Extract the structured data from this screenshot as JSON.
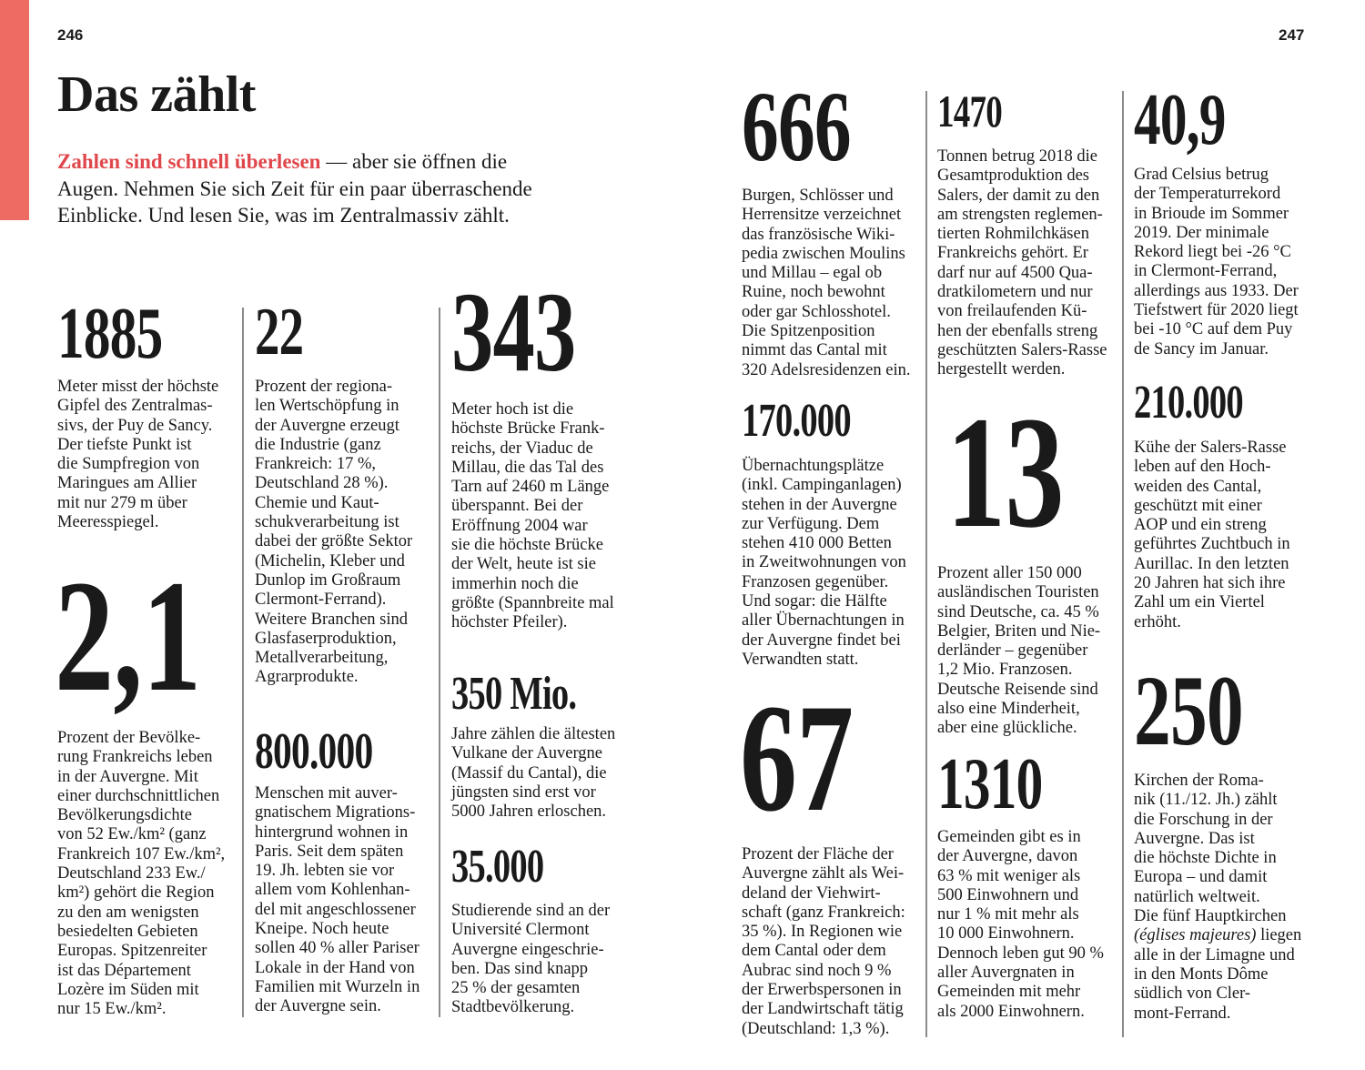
{
  "page_left": "246",
  "page_right": "247",
  "title": "Das zählt",
  "intro": {
    "highlight": "Zahlen sind schnell überlesen",
    "rest": " — aber sie öffnen die\nAugen. Nehmen Sie sich Zeit für ein paar überraschende\nEinblicke. Und lesen Sie, was im Zentralmassiv zählt."
  },
  "colors": {
    "accent": "#ee6b63",
    "highlight_text": "#e0474c"
  },
  "facts": {
    "f1885": {
      "number": "1885",
      "text": "Meter misst der höchste\nGipfel des Zentralmas-\nsivs, der Puy de Sancy.\nDer tiefste Punkt ist\ndie Sumpfregion von\nMaringues am Allier\nmit nur 279 m über\nMeeresspiegel."
    },
    "f21": {
      "number": "2,1",
      "text": "Prozent der Bevölke-\nrung Frankreichs leben\nin der Auvergne. Mit\neiner durchschnittlichen\nBevölkerungsdichte\nvon 52 Ew./km² (ganz\nFrankreich 107 Ew./km²,\nDeutschland 233 Ew./\nkm²) gehört die Region\nzu den am wenigsten\nbesiedelten Gebieten\nEuropas. Spitzenreiter\nist das Département\nLozère im Süden mit\nnur 15 Ew./km²."
    },
    "f22": {
      "number": "22",
      "text": "Prozent der regiona-\nlen Wertschöpfung in\nder Auvergne erzeugt\ndie Industrie (ganz\nFrankreich: 17 %,\nDeutschland 28 %).\nChemie und Kaut-\nschukverarbeitung ist\ndabei der größte Sektor\n(Michelin, Kleber und\nDunlop im Großraum\nClermont-Ferrand).\nWeitere Branchen sind\nGlasfaserproduktion,\nMetallverarbeitung,\nAgrarprodukte."
    },
    "f800000": {
      "number": "800.000",
      "text": "Menschen mit auver-\ngnatischem Migrations-\nhintergrund wohnen in\nParis. Seit dem späten\n19. Jh. lebten sie vor\nallem vom Kohlenhan-\ndel mit angeschlossener\nKneipe. Noch heute\nsollen 40 % aller Pariser\nLokale in der Hand von\nFamilien mit Wurzeln in\nder Auvergne sein."
    },
    "f343": {
      "number": "343",
      "text": "Meter hoch ist die\nhöchste Brücke Frank-\nreichs, der Viaduc de\nMillau, die das Tal des\nTarn auf 2460 m Länge\nüberspannt. Bei der\nEröffnung 2004 war\nsie die höchste Brücke\nder Welt, heute ist sie\nimmerhin noch die\ngrößte (Spannbreite mal\nhöchster Pfeiler)."
    },
    "f350": {
      "number": "350 Mio.",
      "text": "Jahre zählen die ältesten\nVulkane der Auvergne\n(Massif du Cantal), die\njüngsten sind erst vor\n5000 Jahren erloschen."
    },
    "f35000": {
      "number": "35.000",
      "text": "Studierende sind an der\nUniversité Clermont\nAuvergne eingeschrie-\nben. Das sind knapp\n25 % der gesamten\nStadtbevölkerung."
    },
    "f666": {
      "number": "666",
      "text": "Burgen, Schlösser und\nHerrensitze verzeichnet\ndas französische Wiki-\npedia zwischen Moulins\nund Millau – egal ob\nRuine, noch bewohnt\noder gar Schlosshotel.\nDie Spitzenposition\nnimmt das Cantal mit\n320 Adelsresidenzen ein."
    },
    "f170000": {
      "number": "170.000",
      "text": "Übernachtungsplätze\n(inkl. Campinganlagen)\nstehen in der Auvergne\nzur Verfügung. Dem\nstehen 410 000 Betten\nin Zweitwohnungen von\nFranzosen gegenüber.\nUnd sogar: die Hälfte\naller Übernachtungen in\nder Auvergne findet bei\nVerwandten statt."
    },
    "f67": {
      "number": "67",
      "text": "Prozent der Fläche der\nAuvergne zählt als Wei-\ndeland der Viehwirt-\nschaft (ganz Frankreich:\n35 %). In Regionen wie\ndem Cantal oder dem\nAubrac sind noch 9 %\nder Erwerbspersonen in\nder Landwirtschaft tätig\n(Deutschland: 1,3 %)."
    },
    "f1470": {
      "number": "1470",
      "text": "Tonnen betrug 2018 die\nGesamtproduktion des\nSalers, der damit zu den\nam strengsten reglemen-\ntierten Rohmilchkäsen\nFrankreichs gehört. Er\ndarf nur auf 4500 Qua-\ndratkilometern und nur\nvon freilaufenden Kü-\nhen der ebenfalls streng\ngeschützten Salers-Rasse\nhergestellt werden."
    },
    "f13": {
      "number": "13",
      "text": "Prozent aller 150 000\nausländischen Touristen\nsind Deutsche, ca. 45 %\nBelgier, Briten und Nie-\nderländer – gegenüber\n1,2 Mio. Franzosen.\nDeutsche Reisende sind\nalso eine Minderheit,\naber eine glückliche."
    },
    "f1310": {
      "number": "1310",
      "text": "Gemeinden gibt es in\nder Auvergne, davon\n63 % mit weniger als\n500 Einwohnern und\nnur 1 % mit mehr als\n10 000 Einwohnern.\nDennoch leben gut 90 %\naller Auvergnaten in\nGemeinden mit mehr\nals 2000 Einwohnern."
    },
    "f409": {
      "number": "40,9",
      "text": "Grad Celsius betrug\nder Temperaturrekord\nin Brioude im Sommer\n2019. Der minimale\nRekord liegt bei -26 °C\nin Clermont-Ferrand,\nallerdings aus 1933. Der\nTiefstwert für 2020 liegt\nbei -10 °C auf dem Puy\nde Sancy im Januar."
    },
    "f210000": {
      "number": "210.000",
      "text": "Kühe der Salers-Rasse\nleben auf den Hoch-\nweiden des Cantal,\ngeschützt mit einer\nAOP und ein streng\ngeführtes Zuchtbuch in\nAurillac. In den letzten\n20 Jahren hat sich ihre\nZahl um ein Viertel\nerhöht."
    },
    "f250": {
      "number": "250",
      "text_before": "Kirchen der Roma-\nnik (11./12. Jh.) zählt\ndie Forschung in der\nAuvergne. Das ist\ndie höchste Dichte in\nEuropa – und damit\nnatürlich weltweit.\nDie fünf Hauptkirchen\n",
      "text_italic": "(églises majeures)",
      "text_after": " liegen\nalle in der Limagne und\nin den Monts Dôme\nsüdlich von Cler-\nmont-Ferrand."
    }
  }
}
